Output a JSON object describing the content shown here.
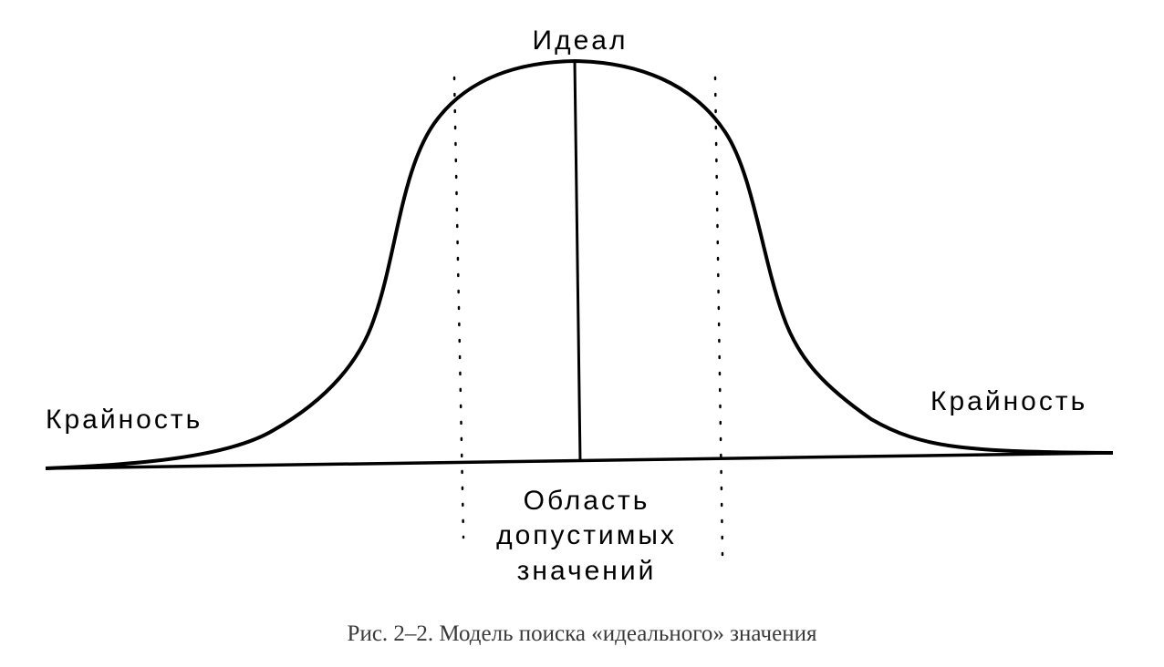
{
  "labels": {
    "ideal": "Идеал",
    "extreme_left": "Крайность",
    "extreme_right": "Крайность",
    "acceptable_area": [
      "Область",
      "допустимых",
      "значений"
    ]
  },
  "caption": "Рис. 2–2. Модель поиска «идеального» значения",
  "colors": {
    "ink": "#000000",
    "caption": "#3a3a3a",
    "background": "#ffffff"
  }
}
